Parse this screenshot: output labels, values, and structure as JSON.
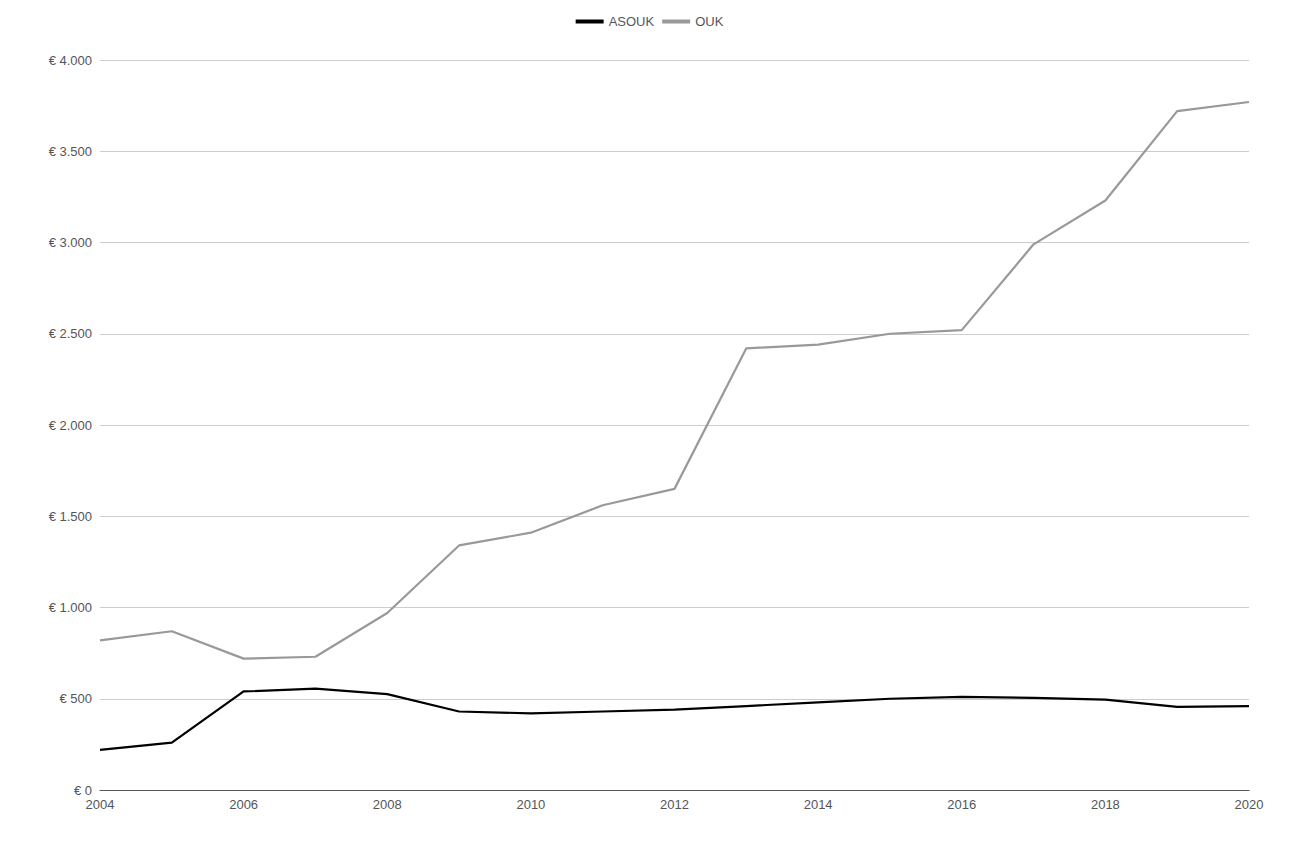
{
  "chart_data": {
    "type": "line",
    "x": [
      2004,
      2005,
      2006,
      2007,
      2008,
      2009,
      2010,
      2011,
      2012,
      2013,
      2014,
      2015,
      2016,
      2017,
      2018,
      2019,
      2020
    ],
    "series": [
      {
        "name": "ASOUK",
        "color": "#000000",
        "values": [
          220,
          260,
          540,
          555,
          525,
          430,
          420,
          430,
          440,
          460,
          480,
          500,
          510,
          505,
          495,
          455,
          460
        ]
      },
      {
        "name": "OUK",
        "color": "#999999",
        "values": [
          820,
          870,
          720,
          730,
          970,
          1340,
          1410,
          1560,
          1650,
          2420,
          2440,
          2500,
          2520,
          2990,
          3230,
          3720,
          3770
        ]
      }
    ],
    "xlim": [
      2004,
      2020
    ],
    "xticks": [
      2004,
      2006,
      2008,
      2010,
      2012,
      2014,
      2016,
      2018,
      2020
    ],
    "ylim": [
      0,
      4000
    ],
    "yticks": [
      {
        "value": 0,
        "label": "€ 0"
      },
      {
        "value": 500,
        "label": "€ 500"
      },
      {
        "value": 1000,
        "label": "€ 1.000"
      },
      {
        "value": 1500,
        "label": "€ 1.500"
      },
      {
        "value": 2000,
        "label": "€ 2.000"
      },
      {
        "value": 2500,
        "label": "€ 2.500"
      },
      {
        "value": 3000,
        "label": "€ 3.000"
      },
      {
        "value": 3500,
        "label": "€ 3.500"
      },
      {
        "value": 4000,
        "label": "€ 4.000"
      }
    ],
    "grid": true,
    "legend": "top"
  }
}
